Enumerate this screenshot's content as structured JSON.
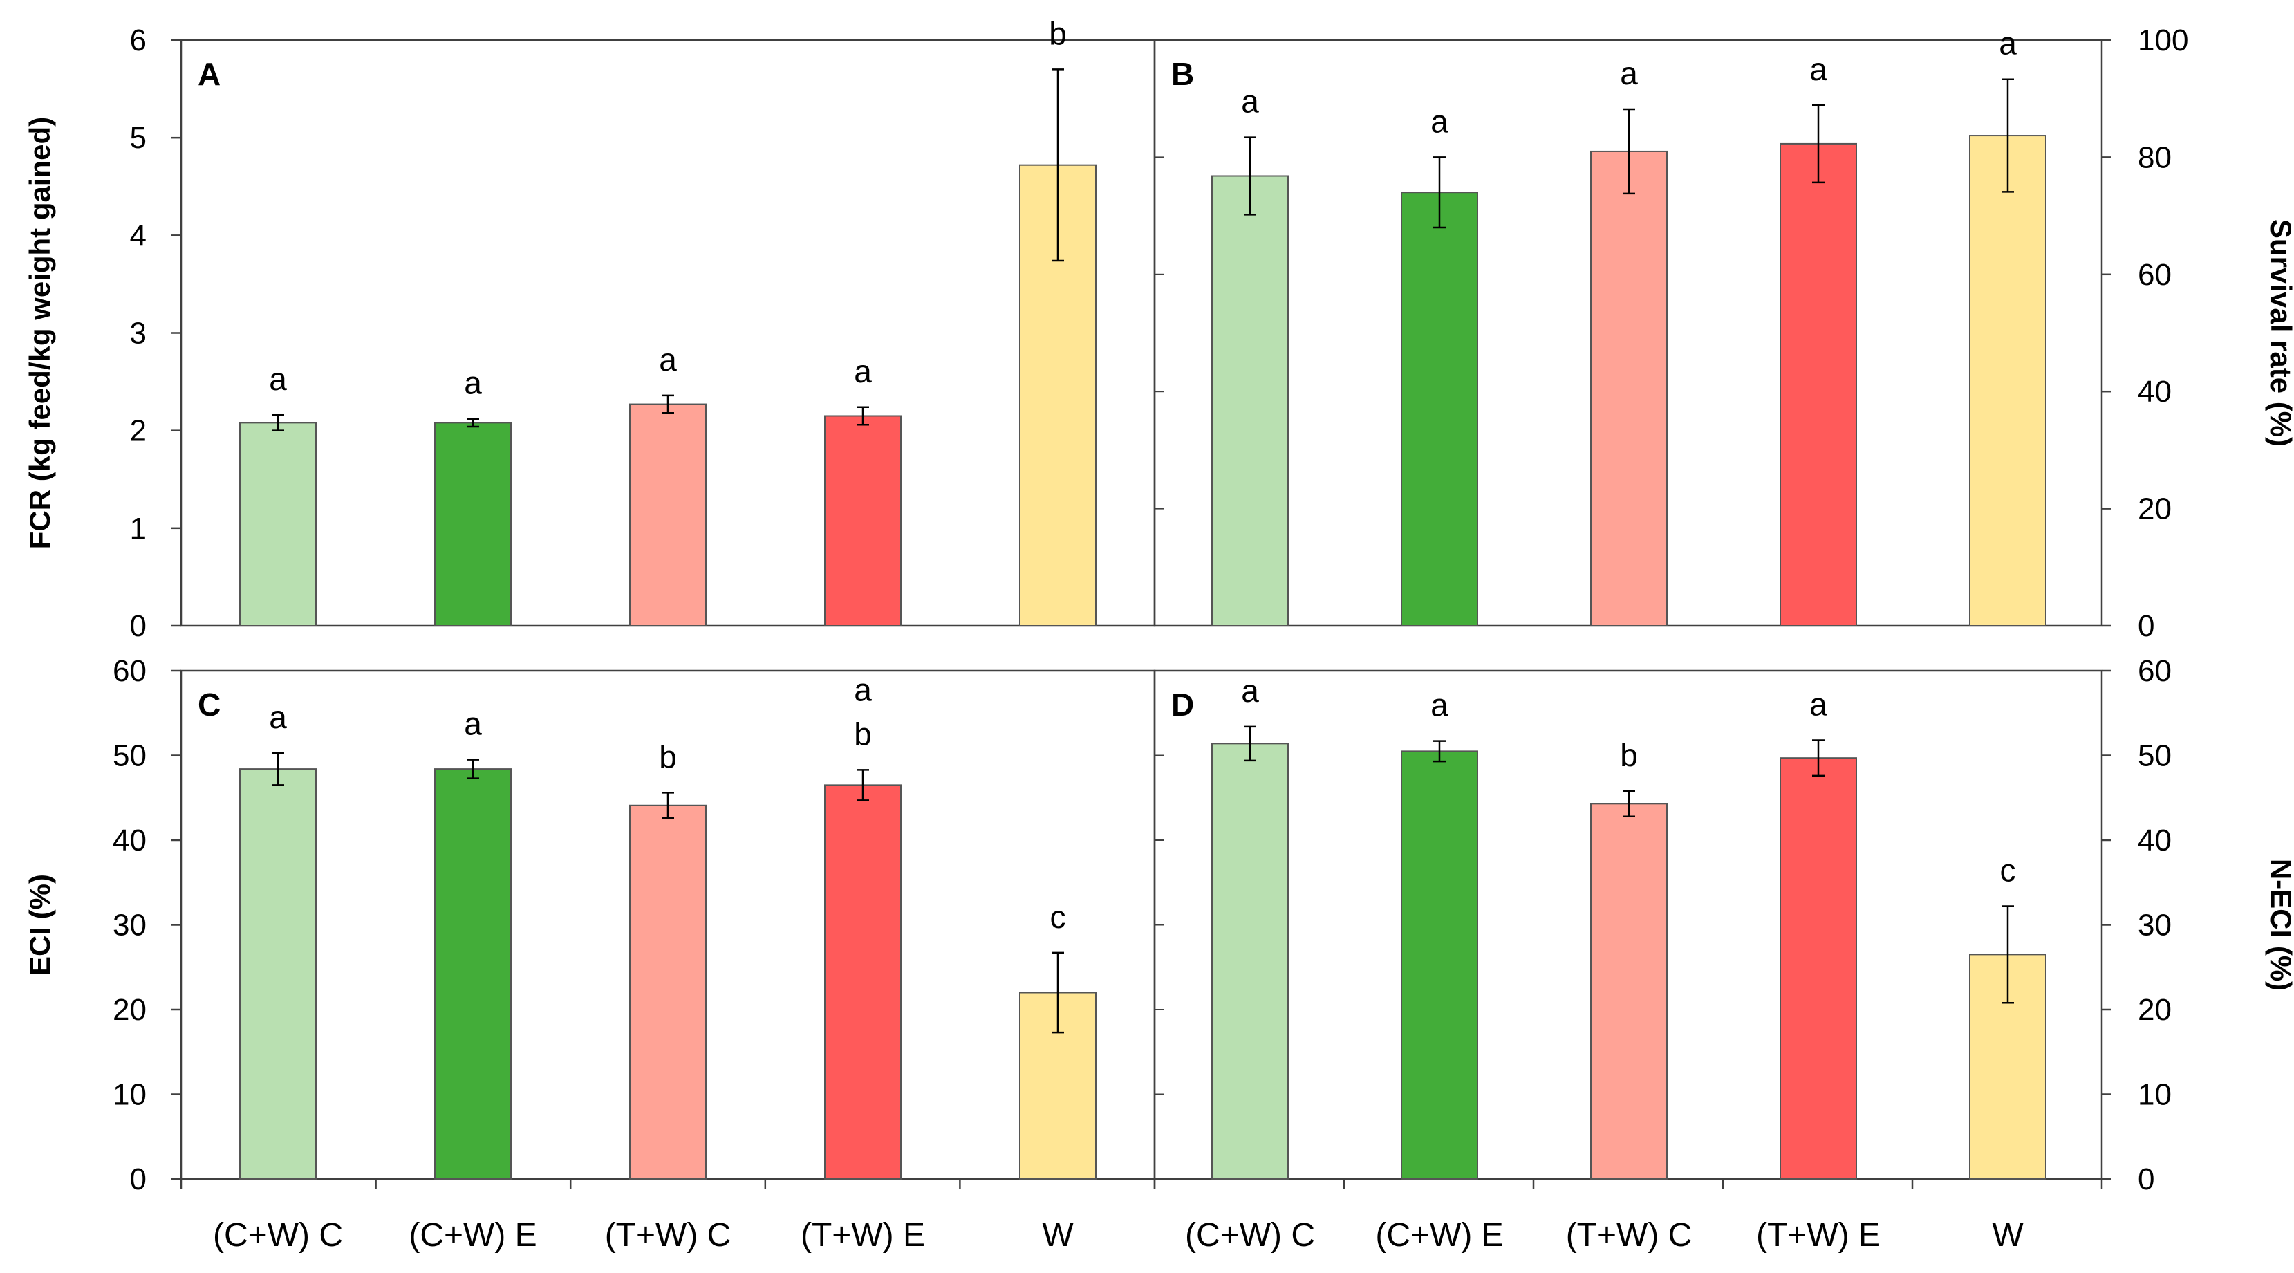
{
  "chart_data": [
    {
      "panel": "A",
      "type": "bar",
      "ylabel": "FCR (kg feed/kg weight gained)",
      "y_axis_side": "left",
      "ylim": [
        0,
        6
      ],
      "yticks": [
        0,
        1,
        2,
        3,
        4,
        5,
        6
      ],
      "categories": [
        "(C+W) C",
        "(C+W) E",
        "(T+W) C",
        "(T+W) E",
        "W"
      ],
      "values": [
        2.08,
        2.08,
        2.27,
        2.15,
        4.72
      ],
      "errors": [
        0.08,
        0.04,
        0.09,
        0.09,
        0.98
      ],
      "letters": [
        "a",
        "a",
        "a",
        "a",
        "b"
      ],
      "colors": [
        "#b9e0b1",
        "#43ad39",
        "#ffa396",
        "#ff5a5a",
        "#ffe695"
      ]
    },
    {
      "panel": "B",
      "type": "bar",
      "ylabel": "Survival rate (%)",
      "y_axis_side": "right",
      "ylim": [
        0,
        100
      ],
      "yticks": [
        0,
        20,
        40,
        60,
        80,
        100
      ],
      "categories": [
        "(C+W) C",
        "(C+W) E",
        "(T+W) C",
        "(T+W) E",
        "W"
      ],
      "values": [
        76.8,
        74.0,
        81.0,
        82.3,
        83.7
      ],
      "errors": [
        6.6,
        6.0,
        7.2,
        6.6,
        9.6
      ],
      "letters": [
        "a",
        "a",
        "a",
        "a",
        "a"
      ],
      "colors": [
        "#b9e0b1",
        "#43ad39",
        "#ffa396",
        "#ff5a5a",
        "#ffe695"
      ]
    },
    {
      "panel": "C",
      "type": "bar",
      "ylabel": "ECI (%)",
      "y_axis_side": "left",
      "ylim": [
        0,
        60
      ],
      "yticks": [
        0,
        10,
        20,
        30,
        40,
        50,
        60
      ],
      "categories": [
        "(C+W) C",
        "(C+W) E",
        "(T+W) C",
        "(T+W) E",
        "W"
      ],
      "values": [
        48.4,
        48.4,
        44.1,
        46.5,
        22.0
      ],
      "errors": [
        1.9,
        1.1,
        1.5,
        1.8,
        4.7
      ],
      "letters": [
        "a",
        "a",
        "b",
        "a\nb",
        "c"
      ],
      "colors": [
        "#b9e0b1",
        "#43ad39",
        "#ffa396",
        "#ff5a5a",
        "#ffe695"
      ]
    },
    {
      "panel": "D",
      "type": "bar",
      "ylabel": "N-ECI (%)",
      "y_axis_side": "right",
      "ylim": [
        0,
        60
      ],
      "yticks": [
        0,
        10,
        20,
        30,
        40,
        50,
        60
      ],
      "categories": [
        "(C+W) C",
        "(C+W) E",
        "(T+W) C",
        "(T+W) E",
        "W"
      ],
      "values": [
        51.4,
        50.5,
        44.3,
        49.7,
        26.5
      ],
      "errors": [
        2.0,
        1.2,
        1.5,
        2.1,
        5.7
      ],
      "letters": [
        "a",
        "a",
        "b",
        "a",
        "c"
      ],
      "colors": [
        "#b9e0b1",
        "#43ad39",
        "#ffa396",
        "#ff5a5a",
        "#ffe695"
      ]
    }
  ]
}
